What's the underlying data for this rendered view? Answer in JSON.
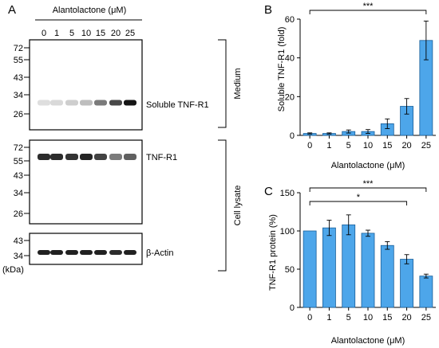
{
  "panel_a": {
    "letter": "A",
    "treatment_title": "Alantolactone (μM)",
    "lanes": [
      "0",
      "1",
      "5",
      "10",
      "15",
      "20",
      "25"
    ],
    "unit_label": "(kDa)",
    "blots": [
      {
        "label": "Soluble TNF-R1",
        "markers": [
          "72",
          "55",
          "43",
          "34",
          "26"
        ],
        "band_intensities": [
          0.06,
          0.08,
          0.13,
          0.2,
          0.5,
          0.72,
          0.95
        ]
      },
      {
        "label": "TNF-R1",
        "markers": [
          "72",
          "55",
          "43",
          "34",
          "26"
        ],
        "band_intensities": [
          0.85,
          0.85,
          0.82,
          0.88,
          0.75,
          0.5,
          0.62
        ]
      },
      {
        "label": "β-Actin",
        "markers": [
          "43",
          "34"
        ],
        "band_intensities": [
          0.9,
          0.9,
          0.9,
          0.9,
          0.9,
          0.85,
          0.9
        ]
      }
    ],
    "brackets": [
      {
        "label": "Medium"
      },
      {
        "label": "Cell lysate"
      }
    ]
  },
  "chart_data": [
    {
      "type": "bar",
      "letter": "B",
      "categories": [
        "0",
        "1",
        "5",
        "10",
        "15",
        "20",
        "25"
      ],
      "values": [
        1,
        1,
        2,
        2,
        6,
        15,
        49
      ],
      "errors": [
        0.3,
        0.3,
        0.8,
        1,
        2.5,
        4,
        10
      ],
      "ylabel": "Soluble TNF-R1 (fold)",
      "xlabel": "Alantolactone (μM)",
      "ylim": [
        0,
        60
      ],
      "yticks": [
        0,
        20,
        40,
        60
      ],
      "significance": [
        {
          "from": "0",
          "to": "25",
          "label": "***"
        }
      ]
    },
    {
      "type": "bar",
      "letter": "C",
      "categories": [
        "0",
        "1",
        "5",
        "10",
        "15",
        "20",
        "25"
      ],
      "values": [
        100,
        104,
        108,
        97,
        81,
        63,
        41
      ],
      "errors": [
        0,
        10,
        13,
        4,
        5,
        6,
        2.5
      ],
      "ylabel": "TNF-R1 protein (%)",
      "xlabel": "Alantolactone (μM)",
      "ylim": [
        0,
        150
      ],
      "yticks": [
        0,
        50,
        100,
        150
      ],
      "significance": [
        {
          "from": "0",
          "to": "25",
          "label": "***"
        },
        {
          "from": "0",
          "to": "20",
          "label": "*"
        }
      ]
    }
  ]
}
